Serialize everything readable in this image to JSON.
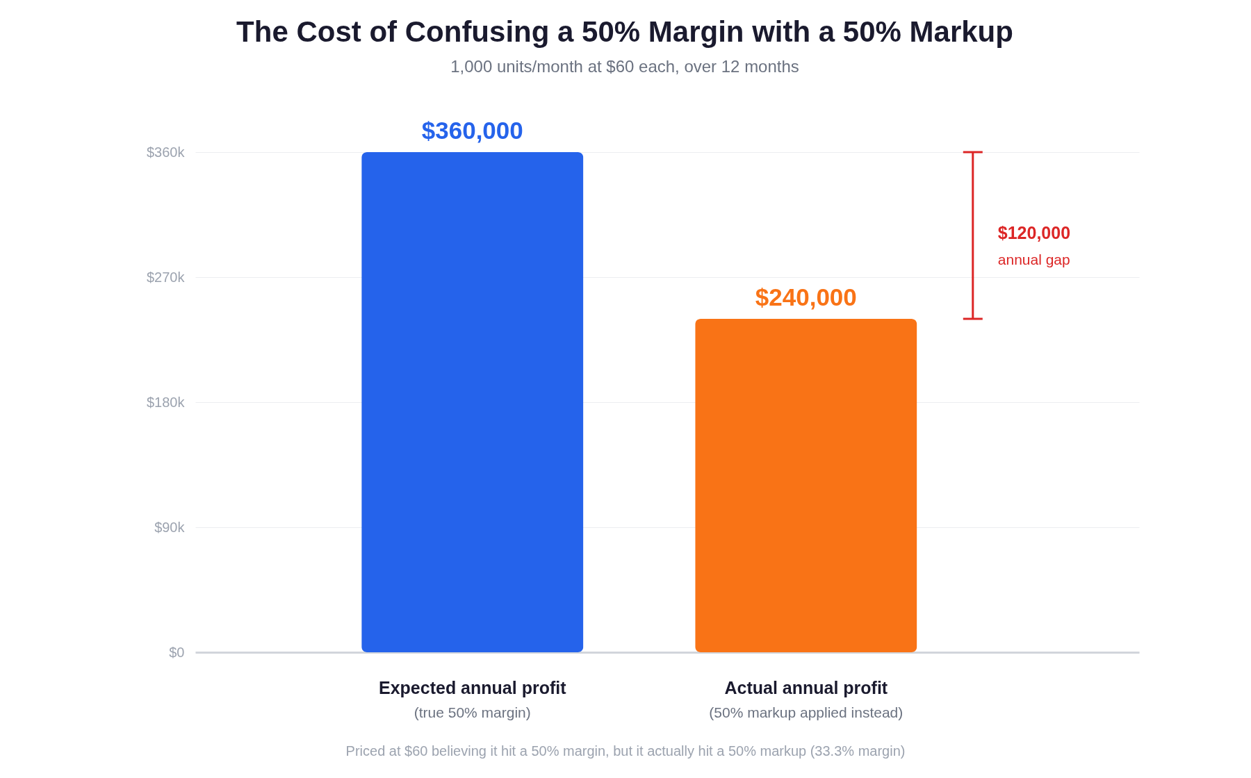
{
  "chart_data": {
    "type": "bar",
    "title": "The Cost of Confusing a 50% Margin with a 50% Markup",
    "subtitle": "1,000 units/month at $60 each, over 12 months",
    "categories": [
      "Expected annual profit",
      "Actual annual profit"
    ],
    "values": [
      360000,
      240000
    ],
    "colors": [
      "#2563eb",
      "#f97316"
    ],
    "value_labels": [
      "$360,000",
      "$240,000"
    ],
    "ylim": [
      0,
      360000
    ],
    "yticks": [
      {
        "value": 0,
        "label": "$0"
      },
      {
        "value": 90000,
        "label": "$90k"
      },
      {
        "value": 180000,
        "label": "$180k"
      },
      {
        "value": 270000,
        "label": "$270k"
      },
      {
        "value": 360000,
        "label": "$360k"
      }
    ],
    "grid": "y",
    "annotations": [
      "(true 50% margin)",
      "(50% markup applied instead)",
      "$120,000",
      "annual gap",
      "Priced at $60 believing it hit a 50% margin, but it actually hit a 50% markup (33.3% margin)"
    ]
  }
}
